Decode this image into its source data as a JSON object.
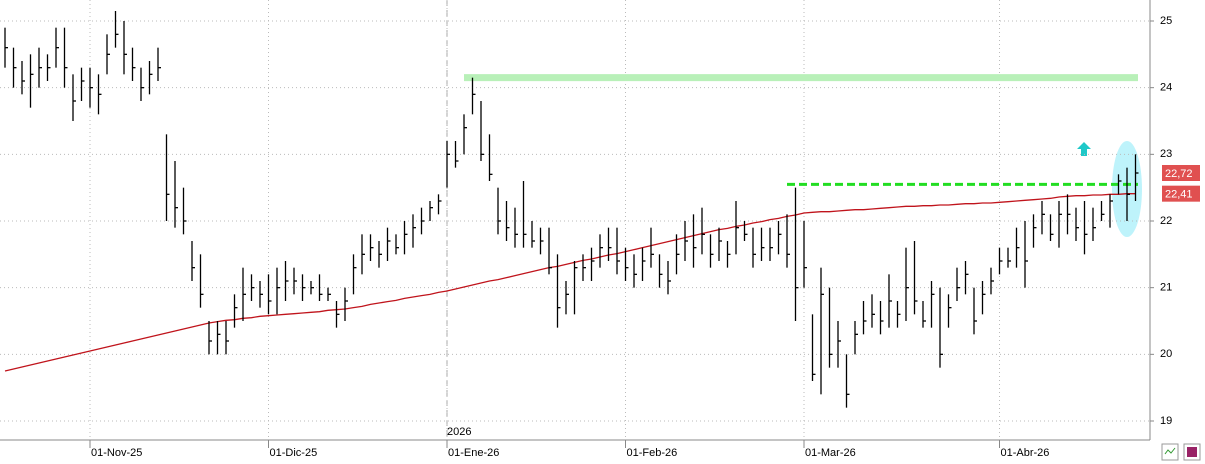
{
  "chart_data": {
    "type": "ohlc",
    "categories": [
      null,
      null,
      null,
      null,
      null,
      null,
      null,
      null,
      null,
      null,
      "01-Nov-25",
      null,
      null,
      null,
      null,
      null,
      null,
      null,
      null,
      null,
      null,
      null,
      null,
      null,
      null,
      null,
      null,
      null,
      null,
      null,
      null,
      "01-Dic-25",
      null,
      null,
      null,
      null,
      null,
      null,
      null,
      null,
      null,
      null,
      null,
      null,
      null,
      null,
      null,
      null,
      null,
      null,
      null,
      null,
      "01-Ene-26",
      null,
      null,
      null,
      null,
      null,
      null,
      null,
      null,
      null,
      null,
      null,
      null,
      null,
      null,
      null,
      null,
      null,
      null,
      null,
      null,
      "01-Feb-26",
      null,
      null,
      null,
      null,
      null,
      null,
      null,
      null,
      null,
      null,
      null,
      null,
      null,
      null,
      null,
      null,
      null,
      null,
      null,
      null,
      "01-Mar-26",
      null,
      null,
      null,
      null,
      null,
      null,
      null,
      null,
      null,
      null,
      null,
      null,
      null,
      null,
      null,
      null,
      null,
      null,
      null,
      null,
      null,
      null,
      "01-Abr-26",
      null,
      null,
      null,
      null,
      null,
      null,
      null,
      null,
      null,
      null,
      null,
      null,
      null,
      null,
      null,
      null
    ],
    "high": [
      24.9,
      24.6,
      24.4,
      24.5,
      24.6,
      24.5,
      24.9,
      24.9,
      24.2,
      24.3,
      24.3,
      24.2,
      24.8,
      25.15,
      25.0,
      24.6,
      24.3,
      24.4,
      24.6,
      23.3,
      22.9,
      22.5,
      21.7,
      21.5,
      20.5,
      20.5,
      20.5,
      20.9,
      21.3,
      21.2,
      21.1,
      21.2,
      21.3,
      21.4,
      21.3,
      21.2,
      21.1,
      21.2,
      21.0,
      20.8,
      21.0,
      21.5,
      21.8,
      21.8,
      21.7,
      21.9,
      21.8,
      22.0,
      22.1,
      22.2,
      22.3,
      22.4,
      23.2,
      23.2,
      23.6,
      24.15,
      23.8,
      23.3,
      22.5,
      22.3,
      22.2,
      22.6,
      22.0,
      21.9,
      21.9,
      21.5,
      21.1,
      21.4,
      21.5,
      21.6,
      21.8,
      21.9,
      21.9,
      21.6,
      21.5,
      21.6,
      21.9,
      21.5,
      21.4,
      21.8,
      22.0,
      22.1,
      22.2,
      21.8,
      21.9,
      21.7,
      22.3,
      22.0,
      21.9,
      21.9,
      21.9,
      22.0,
      22.1,
      22.5,
      22.0,
      20.6,
      21.3,
      21.0,
      20.5,
      20.0,
      20.5,
      20.8,
      20.9,
      20.8,
      21.2,
      20.8,
      21.6,
      21.7,
      20.8,
      21.1,
      21.0,
      20.9,
      21.3,
      21.4,
      21.0,
      21.1,
      21.3,
      21.6,
      21.6,
      21.9,
      22.0,
      22.1,
      22.3,
      22.1,
      22.3,
      22.4,
      22.2,
      22.3,
      22.2,
      22.3,
      22.4,
      22.7,
      22.8,
      23.0
    ],
    "low": [
      24.3,
      24.0,
      23.9,
      23.7,
      24.0,
      24.1,
      24.3,
      24.0,
      23.5,
      23.8,
      23.7,
      23.6,
      24.2,
      24.6,
      24.2,
      24.1,
      23.8,
      23.9,
      24.1,
      22.0,
      21.9,
      21.8,
      21.1,
      20.7,
      20.0,
      20.0,
      20.0,
      20.4,
      20.5,
      20.8,
      20.7,
      20.6,
      20.6,
      20.8,
      20.9,
      20.8,
      20.9,
      20.8,
      20.8,
      20.4,
      20.5,
      20.9,
      21.2,
      21.4,
      21.3,
      21.4,
      21.5,
      21.5,
      21.6,
      21.8,
      22.0,
      22.1,
      22.5,
      22.8,
      23.0,
      23.6,
      22.9,
      22.6,
      21.8,
      21.7,
      21.6,
      21.6,
      21.6,
      21.5,
      21.2,
      20.4,
      20.6,
      20.6,
      21.1,
      21.1,
      21.3,
      21.4,
      21.2,
      21.1,
      21.0,
      21.1,
      21.3,
      21.0,
      20.9,
      21.2,
      21.4,
      21.3,
      21.5,
      21.3,
      21.4,
      21.3,
      21.5,
      21.7,
      21.3,
      21.4,
      21.4,
      21.5,
      21.3,
      20.5,
      21.0,
      19.6,
      19.4,
      19.8,
      19.8,
      19.2,
      20.0,
      20.3,
      20.4,
      20.3,
      20.4,
      20.4,
      20.5,
      20.6,
      20.4,
      20.4,
      19.8,
      20.4,
      20.8,
      20.9,
      20.3,
      20.6,
      20.9,
      21.2,
      21.3,
      21.3,
      21.0,
      21.6,
      21.8,
      21.7,
      21.6,
      21.8,
      21.7,
      21.5,
      21.7,
      22.0,
      21.9,
      22.4,
      22.0,
      22.3
    ],
    "close": [
      24.6,
      24.3,
      24.1,
      24.2,
      24.3,
      24.3,
      24.6,
      24.3,
      23.8,
      24.1,
      24.0,
      23.9,
      24.5,
      24.8,
      24.5,
      24.3,
      24.0,
      24.2,
      24.3,
      22.4,
      22.2,
      22.0,
      21.3,
      20.9,
      20.2,
      20.3,
      20.2,
      20.7,
      20.9,
      21.0,
      20.9,
      20.8,
      21.0,
      21.1,
      21.1,
      21.0,
      21.0,
      20.9,
      20.9,
      20.6,
      20.8,
      21.3,
      21.5,
      21.6,
      21.5,
      21.7,
      21.6,
      21.8,
      21.9,
      22.0,
      22.2,
      22.3,
      23.0,
      22.9,
      23.4,
      23.9,
      23.0,
      22.7,
      22.0,
      21.9,
      21.8,
      21.8,
      21.7,
      21.7,
      21.3,
      20.7,
      20.9,
      21.3,
      21.3,
      21.4,
      21.6,
      21.6,
      21.4,
      21.3,
      21.2,
      21.4,
      21.5,
      21.2,
      21.1,
      21.5,
      21.7,
      21.6,
      21.8,
      21.5,
      21.7,
      21.5,
      21.9,
      21.8,
      21.5,
      21.6,
      21.6,
      21.8,
      21.5,
      21.0,
      21.3,
      19.7,
      20.9,
      20.0,
      20.2,
      19.4,
      20.3,
      20.5,
      20.6,
      20.5,
      20.8,
      20.6,
      21.0,
      20.8,
      20.5,
      20.9,
      20.0,
      20.7,
      21.0,
      21.2,
      20.5,
      20.9,
      21.1,
      21.4,
      21.4,
      21.6,
      21.4,
      21.9,
      22.1,
      21.8,
      22.1,
      22.1,
      21.9,
      21.8,
      21.9,
      22.1,
      22.3,
      22.6,
      22.4,
      22.72
    ],
    "ma": {
      "color": "#c0141c",
      "values": [
        19.75,
        19.78,
        19.81,
        19.84,
        19.87,
        19.9,
        19.93,
        19.96,
        19.99,
        20.02,
        20.05,
        20.08,
        20.11,
        20.14,
        20.17,
        20.2,
        20.23,
        20.26,
        20.29,
        20.32,
        20.35,
        20.38,
        20.41,
        20.44,
        20.47,
        20.49,
        20.51,
        20.52,
        20.54,
        20.55,
        20.57,
        20.58,
        20.59,
        20.6,
        20.61,
        20.62,
        20.63,
        20.64,
        20.66,
        20.67,
        20.68,
        20.7,
        20.72,
        20.75,
        20.77,
        20.79,
        20.81,
        20.84,
        20.86,
        20.88,
        20.9,
        20.93,
        20.95,
        20.98,
        21.01,
        21.04,
        21.07,
        21.1,
        21.12,
        21.15,
        21.18,
        21.21,
        21.24,
        21.27,
        21.3,
        21.32,
        21.35,
        21.38,
        21.41,
        21.43,
        21.46,
        21.49,
        21.51,
        21.54,
        21.57,
        21.6,
        21.63,
        21.66,
        21.69,
        21.72,
        21.75,
        21.78,
        21.81,
        21.84,
        21.87,
        21.89,
        21.92,
        21.94,
        21.97,
        21.99,
        22.02,
        22.04,
        22.07,
        22.09,
        22.12,
        22.13,
        22.14,
        22.14,
        22.15,
        22.16,
        22.17,
        22.17,
        22.18,
        22.19,
        22.2,
        22.21,
        22.22,
        22.22,
        22.23,
        22.23,
        22.24,
        22.24,
        22.25,
        22.26,
        22.26,
        22.27,
        22.27,
        22.28,
        22.29,
        22.3,
        22.31,
        22.32,
        22.33,
        22.34,
        22.36,
        22.37,
        22.38,
        22.38,
        22.39,
        22.39,
        22.4,
        22.4,
        22.41,
        22.41
      ]
    },
    "bar_color": "#000000",
    "levels": [
      {
        "value": 24.15,
        "color": "#b8f0b8",
        "style": "solid"
      },
      {
        "value": 22.55,
        "color": "#22dd22",
        "style": "dashed"
      }
    ],
    "price_labels": [
      {
        "value": 22.72,
        "label": "22,72"
      },
      {
        "value": 22.41,
        "label": "22,41"
      }
    ],
    "year_label": "2026",
    "ylim": [
      18.715,
      25.315
    ],
    "yticks": [
      19,
      20,
      21,
      22,
      23,
      24,
      25
    ],
    "grid": true
  }
}
